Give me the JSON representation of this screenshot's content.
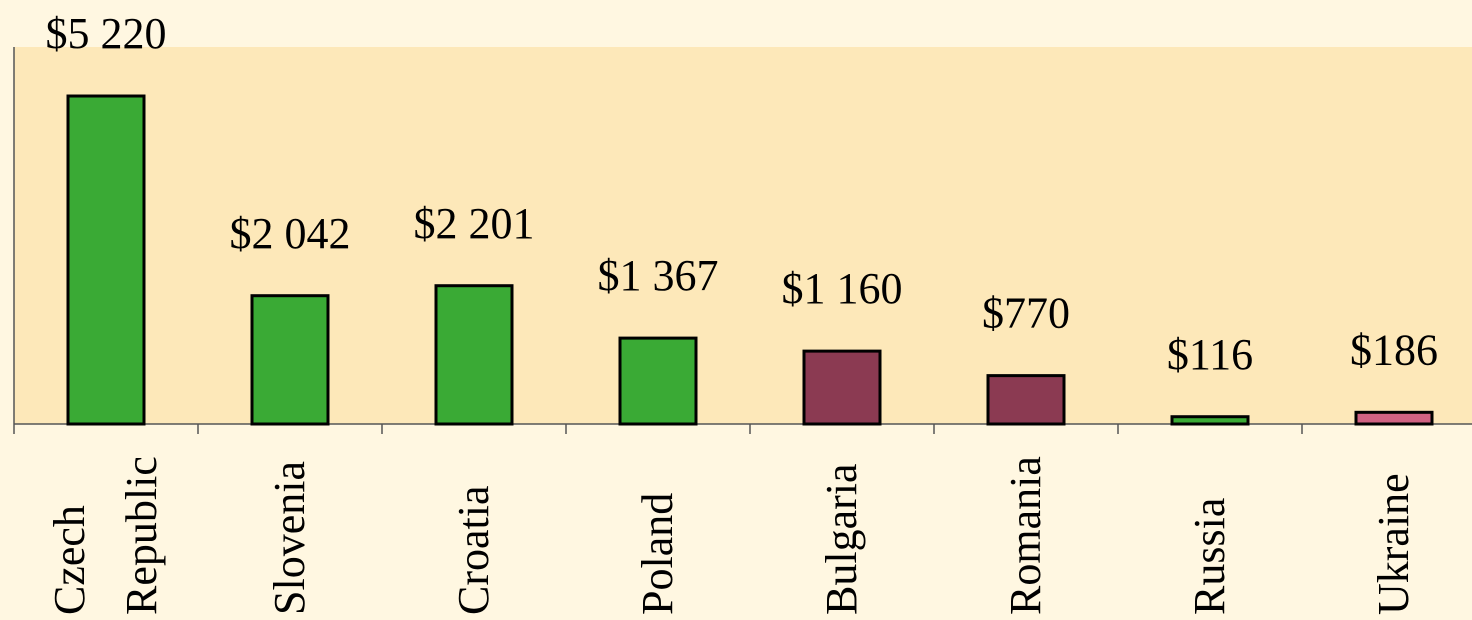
{
  "chart_data": {
    "type": "bar",
    "categories": [
      "Czech Republic",
      "Slovenia",
      "Croatia",
      "Poland",
      "Bulgaria",
      "Romania",
      "Russia",
      "Ukraine"
    ],
    "values": [
      5220,
      2042,
      2201,
      1367,
      1160,
      770,
      116,
      186
    ],
    "value_labels": [
      "$5 220",
      "$2 042",
      "$2 201",
      "$1 367",
      "$1 160",
      "$770",
      "$116",
      "$186"
    ],
    "colors": [
      "#3aaa35",
      "#3aaa35",
      "#3aaa35",
      "#3aaa35",
      "#8b3a52",
      "#8b3a52",
      "#3aaa35",
      "#d06282"
    ],
    "ylim": [
      0,
      6000
    ]
  }
}
